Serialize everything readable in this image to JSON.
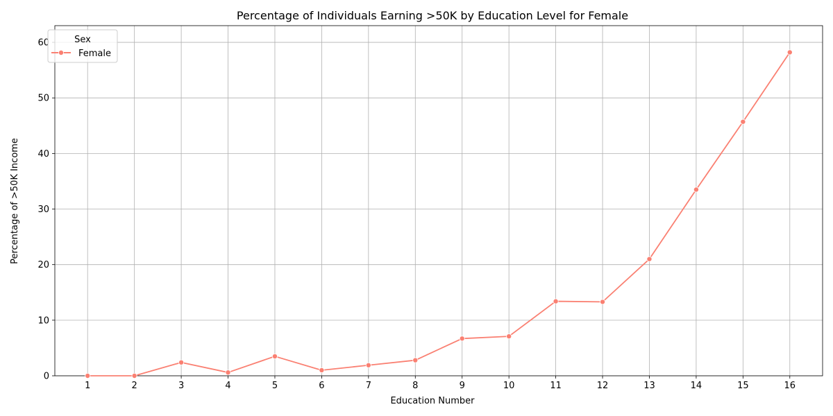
{
  "chart_data": {
    "type": "line",
    "title": "Percentage of Individuals Earning >50K by Education Level for Female",
    "xlabel": "Education Number",
    "ylabel": "Percentage of >50K Income",
    "x": [
      1,
      2,
      3,
      4,
      5,
      6,
      7,
      8,
      9,
      10,
      11,
      12,
      13,
      14,
      15,
      16
    ],
    "x_ticks": [
      "1",
      "2",
      "3",
      "4",
      "5",
      "6",
      "7",
      "8",
      "9",
      "10",
      "11",
      "12",
      "13",
      "14",
      "15",
      "16"
    ],
    "xlim": [
      0.3,
      16.7
    ],
    "y_ticks": [
      "0",
      "10",
      "20",
      "30",
      "40",
      "50",
      "60"
    ],
    "ylim": [
      0,
      63
    ],
    "grid": true,
    "legend": {
      "title": "Sex",
      "position": "top-left"
    },
    "series": [
      {
        "name": "Female",
        "color": "#fa8072",
        "marker": "circle",
        "values": [
          0.0,
          0.0,
          2.4,
          0.6,
          3.5,
          1.0,
          1.9,
          2.8,
          6.7,
          7.1,
          13.4,
          13.3,
          21.0,
          33.5,
          45.7,
          58.2
        ]
      }
    ]
  }
}
